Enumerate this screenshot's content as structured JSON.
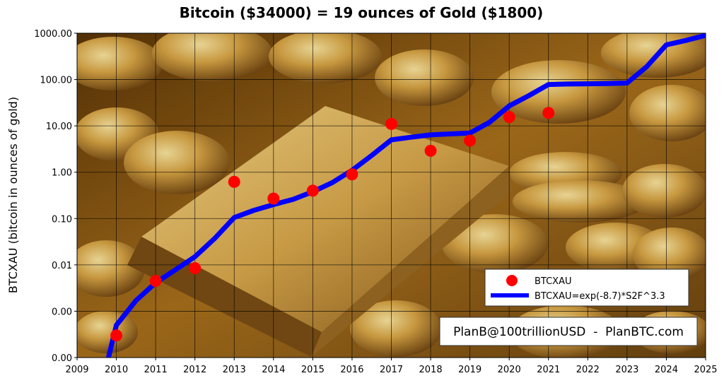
{
  "chart_data": {
    "type": "line",
    "title": "Bitcoin ($34000) = 19 ounces of Gold ($1800)",
    "xlabel": "",
    "ylabel": "BTCXAU (bitcoin in ounces of gold)",
    "xlim": [
      2009,
      2025
    ],
    "ylim": [
      0.0001,
      1000
    ],
    "yscale": "log",
    "grid": true,
    "legend_position": "bottom-right",
    "x_ticks": [
      "2009",
      "2010",
      "2011",
      "2012",
      "2013",
      "2014",
      "2015",
      "2016",
      "2017",
      "2018",
      "2019",
      "2020",
      "2021",
      "2022",
      "2023",
      "2024",
      "2025"
    ],
    "y_ticks": [
      {
        "value": 1000,
        "label": "1000.00"
      },
      {
        "value": 100,
        "label": "100.00"
      },
      {
        "value": 10,
        "label": "10.00"
      },
      {
        "value": 1,
        "label": "1.00"
      },
      {
        "value": 0.1,
        "label": "0.10"
      },
      {
        "value": 0.01,
        "label": "0.01"
      },
      {
        "value": 0.001,
        "label": "0.00"
      },
      {
        "value": 0.0001,
        "label": "0.00"
      }
    ],
    "series": [
      {
        "name": "BTCXAU",
        "kind": "scatter",
        "color": "#ff0000",
        "x": [
          2010,
          2011,
          2012,
          2013,
          2014,
          2015,
          2016,
          2017,
          2018,
          2019,
          2020,
          2021
        ],
        "y": [
          0.0003,
          0.0045,
          0.0085,
          0.62,
          0.27,
          0.4,
          0.9,
          11,
          2.9,
          4.8,
          15.5,
          19
        ]
      },
      {
        "name": "BTCXAU=exp(-8.7)*S2F^3.3",
        "kind": "line",
        "color": "#0000ff",
        "x": [
          2009.8,
          2010,
          2010.5,
          2011,
          2011.5,
          2012,
          2012.5,
          2013,
          2013.5,
          2014,
          2014.5,
          2015,
          2015.5,
          2016,
          2016.5,
          2017,
          2017.5,
          2018,
          2018.5,
          2019,
          2019.5,
          2020,
          2020.5,
          2021,
          2021.5,
          2022,
          2022.5,
          2023,
          2023.5,
          2024,
          2024.5,
          2025
        ],
        "y": [
          0.0001,
          0.0005,
          0.0017,
          0.0041,
          0.0078,
          0.015,
          0.037,
          0.105,
          0.15,
          0.2,
          0.26,
          0.38,
          0.6,
          1.1,
          2.3,
          5,
          5.7,
          6.4,
          6.7,
          7,
          12,
          27,
          45,
          78,
          80,
          81,
          82,
          84,
          190,
          560,
          700,
          900
        ]
      }
    ]
  },
  "watermark": "PlanB@100trillionUSD  -  PlanBTC.com"
}
